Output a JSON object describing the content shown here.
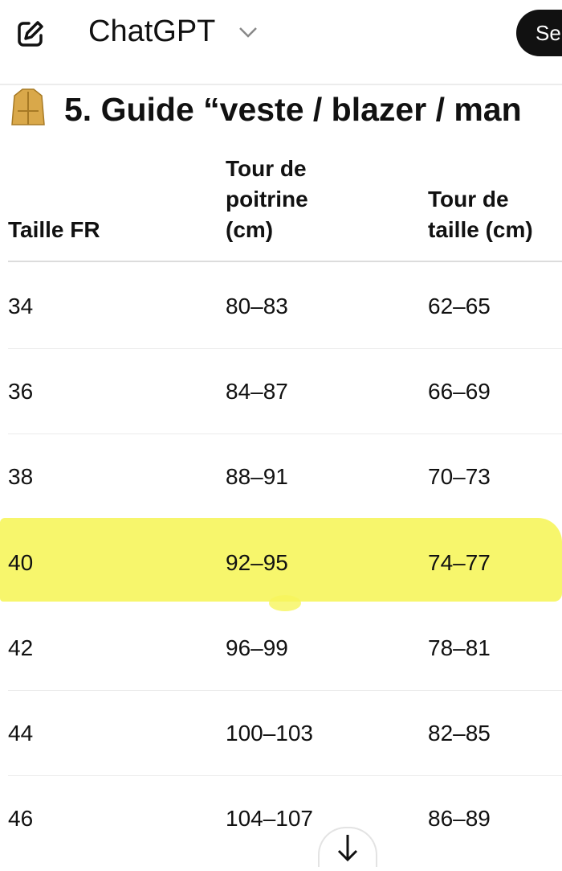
{
  "header": {
    "app_name": "ChatGPT",
    "share_label": "Se"
  },
  "section": {
    "title": "5. Guide “veste / blazer / man",
    "icon": "coat-emoji"
  },
  "table": {
    "columns": [
      "Taille FR",
      "Tour de poitrine (cm)",
      "Tour de taille (cm)"
    ],
    "column_lines": [
      [
        "Taille FR"
      ],
      [
        "Tour de",
        "poitrine",
        "(cm)"
      ],
      [
        "Tour de",
        "taille (cm)"
      ]
    ],
    "rows": [
      [
        "34",
        "80–83",
        "62–65"
      ],
      [
        "36",
        "84–87",
        "66–69"
      ],
      [
        "38",
        "88–91",
        "70–73"
      ],
      [
        "40",
        "92–95",
        "74–77"
      ],
      [
        "42",
        "96–99",
        "78–81"
      ],
      [
        "44",
        "100–103",
        "82–85"
      ],
      [
        "46",
        "104–107",
        "86–89"
      ]
    ],
    "highlighted_row": "40",
    "highlight_color": "#f6f55c"
  }
}
